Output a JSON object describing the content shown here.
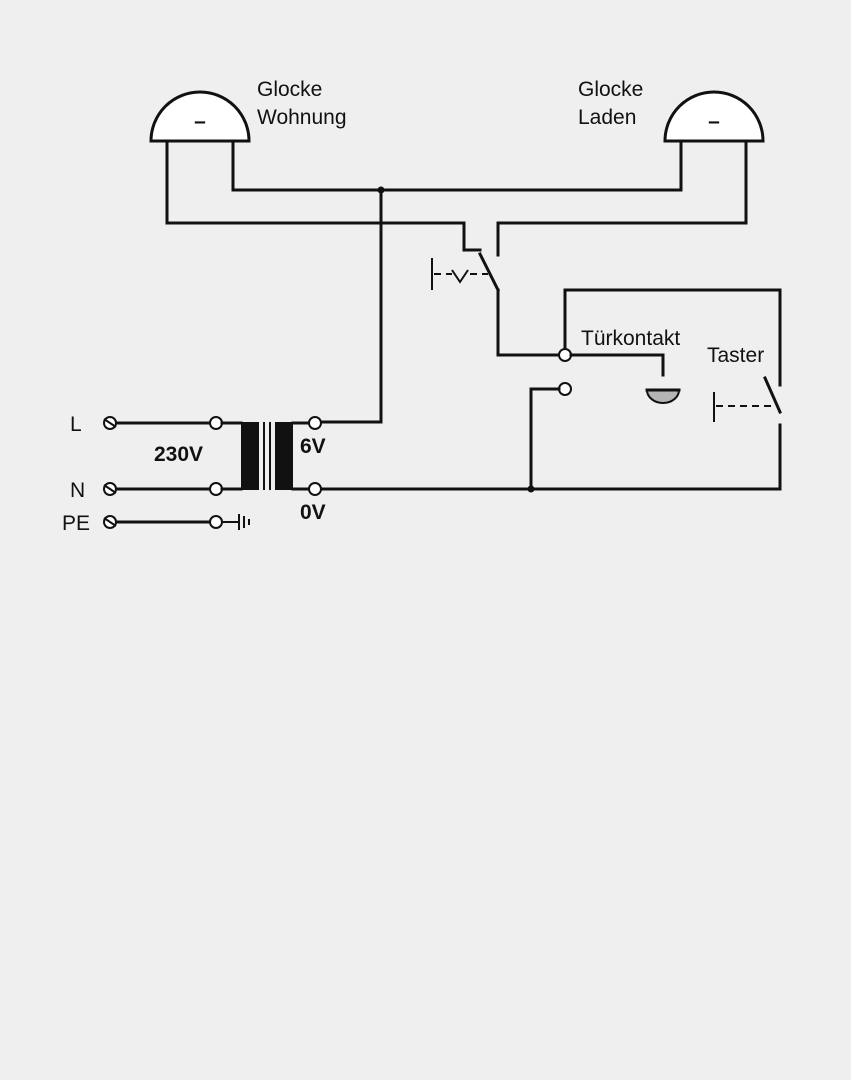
{
  "labels": {
    "bell_apartment": [
      "Glocke",
      "Wohnung"
    ],
    "bell_shop": [
      "Glocke",
      "Laden"
    ],
    "door_contact": "Türkontakt",
    "push_button": "Taster",
    "line_l": "L",
    "line_n": "N",
    "line_pe": "PE",
    "primary_voltage": "230V",
    "secondary_voltage_high": "6V",
    "secondary_voltage_low": "0V",
    "bell_symbol": "–"
  },
  "colors": {
    "background": "#efefef",
    "line": "#111111",
    "terminal_fill": "#ffffff",
    "door_contact_fill": "#b5b5b5"
  }
}
